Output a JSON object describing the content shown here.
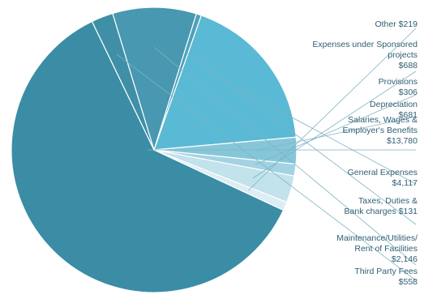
{
  "chart_data": {
    "type": "pie",
    "title": "",
    "slices": [
      {
        "name": "Salaries, Wages & Employer's Benefits",
        "label_lines": [
          "Salaries, Wages &",
          "Employer's Benefits",
          "$13,780"
        ],
        "value": 13780,
        "color": "#3a8da4"
      },
      {
        "name": "Third Party Fees",
        "label_lines": [
          "Third Party Fees",
          "$558"
        ],
        "value": 558,
        "color": "#3f8fa7"
      },
      {
        "name": "Maintenance/Utilities/Rent of Facilities",
        "label_lines": [
          "Maintenance/Utilities/",
          "Rent of Facilities",
          "$2,146"
        ],
        "value": 2146,
        "color": "#4798b0"
      },
      {
        "name": "Taxes, Duties & Bank charges",
        "label_lines": [
          "Taxes, Duties &",
          "Bank charges $131"
        ],
        "value": 131,
        "color": "#4ea1b9"
      },
      {
        "name": "General Expenses",
        "label_lines": [
          "General Expenses",
          "$4,117"
        ],
        "value": 4117,
        "color": "#5ab9d4"
      },
      {
        "name": "Depreciation",
        "label_lines": [
          "Depreciation",
          "$681"
        ],
        "value": 681,
        "color": "#86c6d9"
      },
      {
        "name": "Provisions",
        "label_lines": [
          "Provisions",
          "$306"
        ],
        "value": 306,
        "color": "#a3d3e2"
      },
      {
        "name": "Expenses under Sponsored projects",
        "label_lines": [
          "Expenses under Sponsored",
          "projects",
          "$688"
        ],
        "value": 688,
        "color": "#c2e2ec"
      },
      {
        "name": "Other",
        "label_lines": [
          "Other $219"
        ],
        "value": 219,
        "color": "#dcedf3"
      }
    ]
  }
}
